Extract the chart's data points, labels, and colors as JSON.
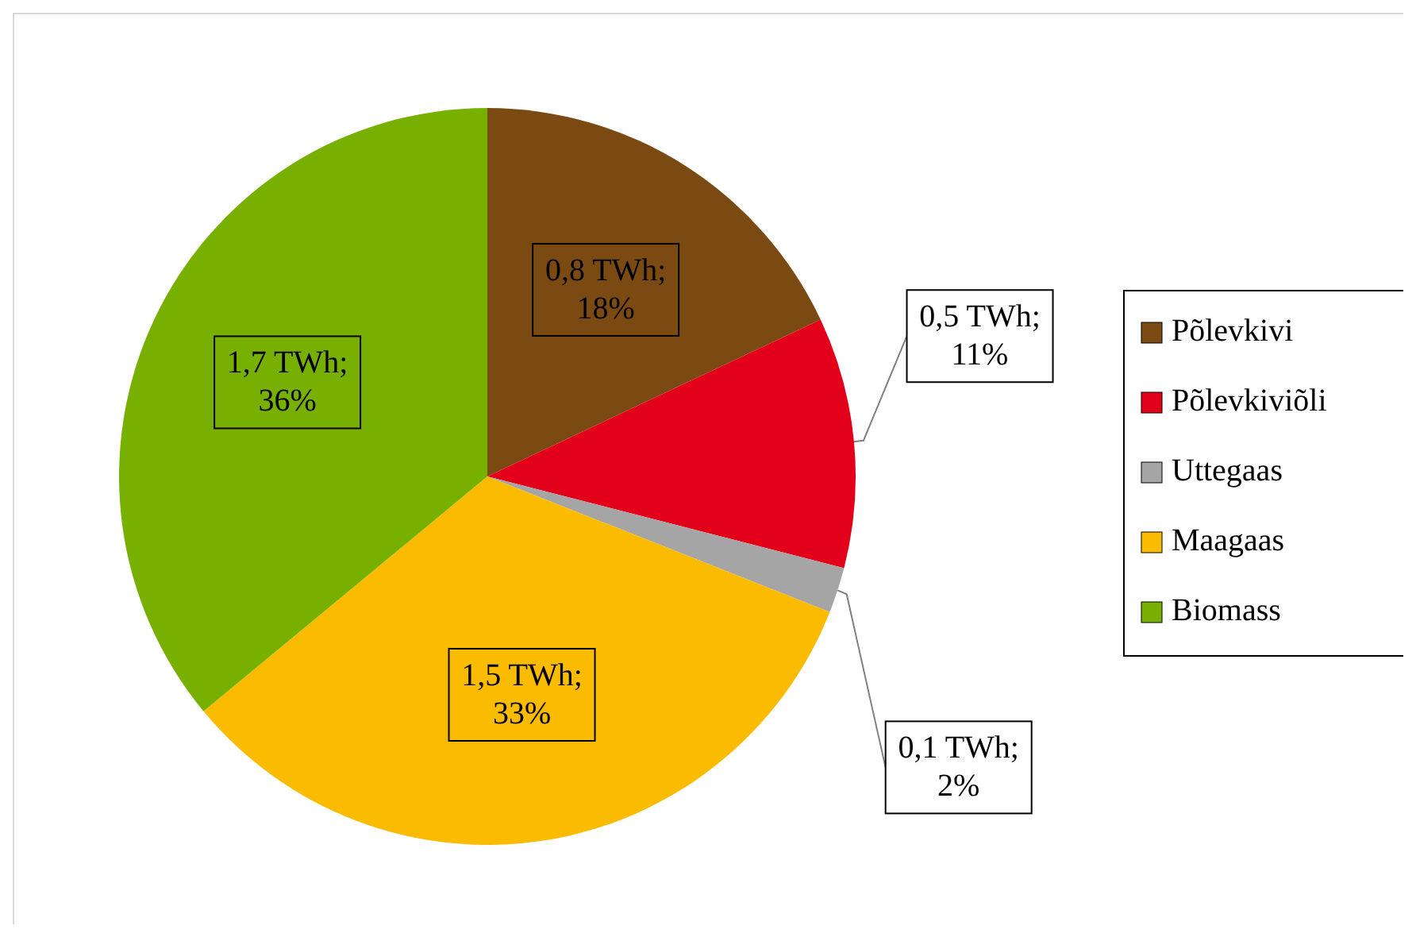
{
  "chart_data": {
    "type": "pie",
    "categories": [
      "Põlevkivi",
      "Põlevkiviõli",
      "Uttegaas",
      "Maagaas",
      "Biomass"
    ],
    "values": [
      18,
      11,
      2,
      33,
      36
    ],
    "colors": [
      "#7b4a12",
      "#e2001a",
      "#a5a5a5",
      "#fbbb00",
      "#77b000"
    ],
    "value_labels": [
      "0,8 TWh;\n18%",
      "0,5 TWh;\n11%",
      "0,1 TWh;\n2%",
      "1,5 TWh;\n33%",
      "1,7 TWh;\n36%"
    ],
    "legend": "right"
  }
}
